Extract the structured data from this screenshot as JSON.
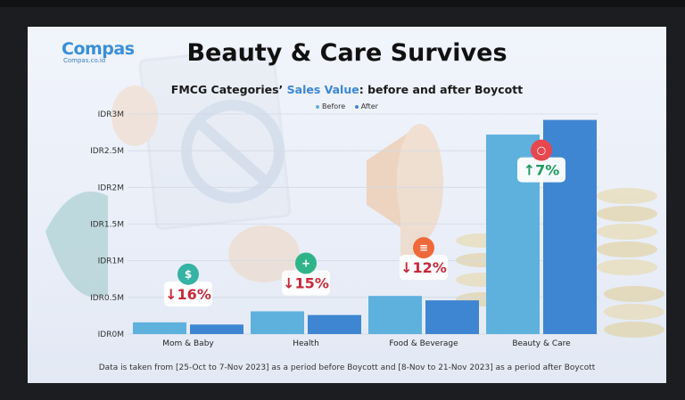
{
  "logo": {
    "main": "Compas",
    "sub": "Compas.co.id"
  },
  "title": "Beauty & Care Survives",
  "subtitle_pre": "FMCG Categories’ ",
  "subtitle_highlight": "Sales Value",
  "subtitle_post": ": before and after Boycott",
  "footnote": "Data is taken from [25-Oct to 7-Nov 2023] as a period before Boycott and [8-Nov to 21-Nov 2023] as a period after Boycott",
  "colors": {
    "before": "#5eb1dd",
    "after": "#3f86d2",
    "down": "#c8283a",
    "up": "#1f9a5e",
    "icon_mom": "#35b3a4",
    "icon_health": "#2fb48a",
    "icon_food": "#ef6a3a",
    "icon_beauty": "#e8474f"
  },
  "chart_data": {
    "type": "bar",
    "title": "FMCG Categories’ Sales Value: before and after Boycott",
    "categories": [
      "Mom & Baby",
      "Health",
      "Food & Beverage",
      "Beauty & Care"
    ],
    "series": [
      {
        "name": "Before",
        "values": [
          0.16,
          0.31,
          0.52,
          2.72
        ]
      },
      {
        "name": "After",
        "values": [
          0.13,
          0.26,
          0.46,
          2.92
        ]
      }
    ],
    "changes": [
      "↓16%",
      "↓15%",
      "↓12%",
      "↑7%"
    ],
    "change_direction": [
      "down",
      "down",
      "down",
      "up"
    ],
    "change_icons": [
      "money-bag-icon",
      "health-icon",
      "food-icon",
      "beauty-mirror-icon"
    ],
    "y_ticks": [
      {
        "value": 0,
        "label": "IDR0M"
      },
      {
        "value": 0.5,
        "label": "IDR0.5M"
      },
      {
        "value": 1,
        "label": "IDR1M"
      },
      {
        "value": 1.5,
        "label": "IDR1.5M"
      },
      {
        "value": 2,
        "label": "IDR2M"
      },
      {
        "value": 2.5,
        "label": "IDR2.5M"
      },
      {
        "value": 3,
        "label": "IDR3M"
      }
    ],
    "ylim": [
      0,
      3
    ],
    "grid": true,
    "legend_position": "top-center"
  }
}
